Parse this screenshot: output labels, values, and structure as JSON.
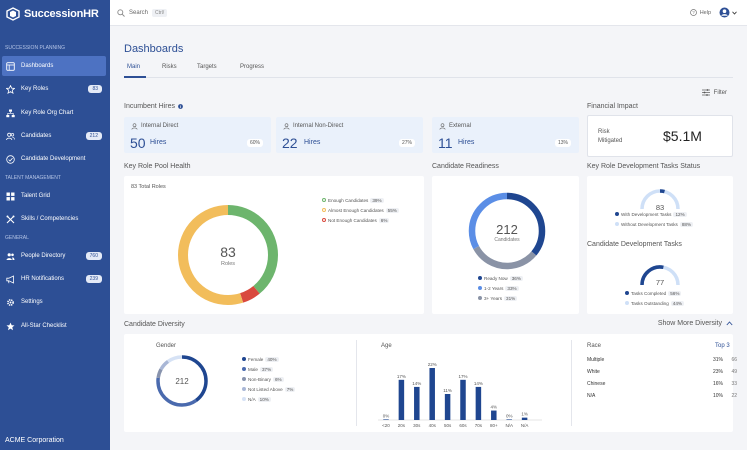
{
  "app": {
    "name": "SuccessionHR",
    "company": "ACME Corporation"
  },
  "sidebar": {
    "sections": {
      "succession": "SUCCESSION PLANNING",
      "talent": "TALENT MANAGEMENT",
      "general": "GENERAL"
    },
    "items": [
      {
        "label": "Dashboards",
        "icon": "dashboard-icon"
      },
      {
        "label": "Key Roles",
        "badge": "83",
        "icon": "star-icon"
      },
      {
        "label": "Key Role Org Chart",
        "icon": "org-chart-icon"
      },
      {
        "label": "Candidates",
        "badge": "212",
        "icon": "people-icon"
      },
      {
        "label": "Candidate Development",
        "icon": "check-circle-icon"
      },
      {
        "label": "Talent Grid",
        "icon": "grid-icon"
      },
      {
        "label": "Skills / Competencies",
        "icon": "tools-icon"
      },
      {
        "label": "People Directory",
        "badge": "760",
        "icon": "people-icon"
      },
      {
        "label": "HR Notifications",
        "badge": "239",
        "icon": "megaphone-icon"
      },
      {
        "label": "Settings",
        "icon": "gear-icon"
      },
      {
        "label": "All-Star Checklist",
        "icon": "checklist-icon"
      }
    ]
  },
  "topbar": {
    "search_label": "Search",
    "shortcut": "Ctrl/",
    "help": "Help"
  },
  "page": {
    "title": "Dashboards",
    "tabs": [
      "Main",
      "Risks",
      "Targets",
      "Progress"
    ],
    "filter": "Filter"
  },
  "incumbent": {
    "title": "Incumbent Hires",
    "cards": [
      {
        "label": "Internal Direct",
        "value": "50",
        "unit": "Hires",
        "pct": "60%"
      },
      {
        "label": "Internal Non-Direct",
        "value": "22",
        "unit": "Hires",
        "pct": "27%"
      },
      {
        "label": "External",
        "value": "11",
        "unit": "Hires",
        "pct": "13%"
      }
    ]
  },
  "financial": {
    "title": "Financial Impact",
    "label": "Risk Mitigated",
    "value": "$5.1M"
  },
  "pool": {
    "title": "Key Role Pool Health",
    "total": "83 Total Roles",
    "center_value": "83",
    "center_label": "Roles",
    "legend": [
      {
        "label": "Enough Candidates",
        "pct": "39%",
        "color": "#6db56d"
      },
      {
        "label": "Almost Enough Candidates",
        "pct": "55%",
        "color": "#f2bd5b"
      },
      {
        "label": "Not Enough Candidates",
        "pct": "6%",
        "color": "#d9493e"
      }
    ]
  },
  "readiness": {
    "title": "Candidate Readiness",
    "center_value": "212",
    "center_label": "Candidates",
    "legend": [
      {
        "label": "Ready Now",
        "pct": "36%",
        "color": "#1f4690"
      },
      {
        "label": "1-2 Years",
        "pct": "33%",
        "color": "#5b8ee6"
      },
      {
        "label": "3+ Years",
        "pct": "31%",
        "color": "#8a93a6"
      }
    ]
  },
  "kr_tasks": {
    "title": "Key Role Development Tasks Status",
    "value": "83",
    "legend": [
      {
        "label": "With Development Tasks",
        "pct": "12%",
        "color": "#1f4690"
      },
      {
        "label": "Without Development Tasks",
        "pct": "88%",
        "color": "#cfe0f7"
      }
    ]
  },
  "cd_tasks": {
    "title": "Candidate Development Tasks",
    "value": "77",
    "legend": [
      {
        "label": "Tasks Completed",
        "pct": "56%",
        "color": "#1f4690"
      },
      {
        "label": "Tasks Outstanding",
        "pct": "44%",
        "color": "#cfe0f7"
      }
    ]
  },
  "diversity": {
    "title": "Candidate Diversity",
    "show_more": "Show More Diversity",
    "gender": {
      "title": "Gender",
      "center_value": "212",
      "legend": [
        {
          "label": "Female",
          "pct": "40%",
          "color": "#1f4690"
        },
        {
          "label": "Male",
          "pct": "37%",
          "color": "#4a6aae"
        },
        {
          "label": "Non-Binary",
          "pct": "6%",
          "color": "#8893ad"
        },
        {
          "label": "Not Listed Above",
          "pct": "7%",
          "color": "#a9b7d6"
        },
        {
          "label": "N/A",
          "pct": "10%",
          "color": "#d6e2f5"
        }
      ]
    },
    "age": {
      "title": "Age",
      "chart_data": {
        "type": "bar",
        "categories": [
          "<20",
          "20s",
          "30s",
          "40s",
          "50s",
          "60s",
          "70s",
          "80+",
          "N/A",
          "N/A"
        ],
        "values": [
          0,
          17,
          14,
          22,
          11,
          17,
          14,
          4,
          0,
          1
        ],
        "value_labels": [
          "0%",
          "17%",
          "14%",
          "22%",
          "11%",
          "17%",
          "14%",
          "4%",
          "0%",
          "1%"
        ],
        "ylim": [
          0,
          22
        ]
      }
    },
    "race": {
      "title": "Race",
      "top_link": "Top 3",
      "rows": [
        {
          "name": "Multiple",
          "pct": "31%",
          "count": "66"
        },
        {
          "name": "White",
          "pct": "23%",
          "count": "49"
        },
        {
          "name": "Chinese",
          "pct": "16%",
          "count": "33"
        },
        {
          "name": "N/A",
          "pct": "10%",
          "count": "22"
        }
      ]
    }
  }
}
